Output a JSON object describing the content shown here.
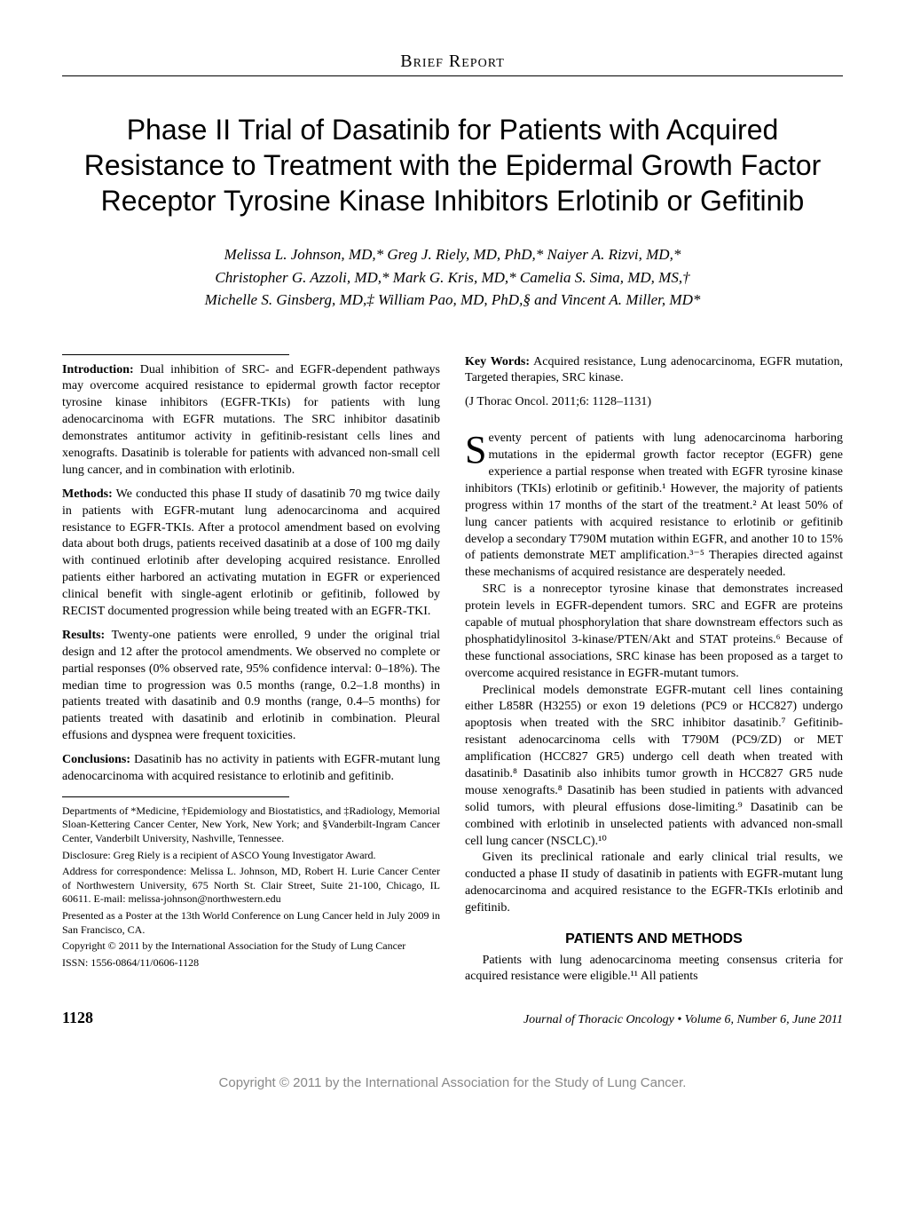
{
  "section_header": "Brief Report",
  "title": "Phase II Trial of Dasatinib for Patients with Acquired Resistance to Treatment with the Epidermal Growth Factor Receptor Tyrosine Kinase Inhibitors Erlotinib or Gefitinib",
  "authors_line1": "Melissa L. Johnson, MD,* Greg J. Riely, MD, PhD,* Naiyer A. Rizvi, MD,*",
  "authors_line2": "Christopher G. Azzoli, MD,* Mark G. Kris, MD,* Camelia S. Sima, MD, MS,†",
  "authors_line3": "Michelle S. Ginsberg, MD,‡ William Pao, MD, PhD,§ and Vincent A. Miller, MD*",
  "abstract": {
    "intro_label": "Introduction:",
    "intro": " Dual inhibition of SRC- and EGFR-dependent pathways may overcome acquired resistance to epidermal growth factor receptor tyrosine kinase inhibitors (EGFR-TKIs) for patients with lung adenocarcinoma with EGFR mutations. The SRC inhibitor dasatinib demonstrates antitumor activity in gefitinib-resistant cells lines and xenografts. Dasatinib is tolerable for patients with advanced non-small cell lung cancer, and in combination with erlotinib.",
    "methods_label": "Methods:",
    "methods": " We conducted this phase II study of dasatinib 70 mg twice daily in patients with EGFR-mutant lung adenocarcinoma and acquired resistance to EGFR-TKIs. After a protocol amendment based on evolving data about both drugs, patients received dasatinib at a dose of 100 mg daily with continued erlotinib after developing acquired resistance. Enrolled patients either harbored an activating mutation in EGFR or experienced clinical benefit with single-agent erlotinib or gefitinib, followed by RECIST documented progression while being treated with an EGFR-TKI.",
    "results_label": "Results:",
    "results": " Twenty-one patients were enrolled, 9 under the original trial design and 12 after the protocol amendments. We observed no complete or partial responses (0% observed rate, 95% confidence interval: 0–18%). The median time to progression was 0.5 months (range, 0.2–1.8 months) in patients treated with dasatinib and 0.9 months (range, 0.4–5 months) for patients treated with dasatinib and erlotinib in combination. Pleural effusions and dyspnea were frequent toxicities.",
    "conclusions_label": "Conclusions:",
    "conclusions": " Dasatinib has no activity in patients with EGFR-mutant lung adenocarcinoma with acquired resistance to erlotinib and gefitinib."
  },
  "affiliations": {
    "depts": "Departments of *Medicine, †Epidemiology and Biostatistics, and ‡Radiology, Memorial Sloan-Kettering Cancer Center, New York, New York; and §Vanderbilt-Ingram Cancer Center, Vanderbilt University, Nashville, Tennessee.",
    "disclosure": "Disclosure: Greg Riely is a recipient of ASCO Young Investigator Award.",
    "correspondence": "Address for correspondence: Melissa L. Johnson, MD, Robert H. Lurie Cancer Center of Northwestern University, 675 North St. Clair Street, Suite 21-100, Chicago, IL 60611. E-mail: melissa-johnson@northwestern.edu",
    "presented": "Presented as a Poster at the 13th World Conference on Lung Cancer held in July 2009 in San Francisco, CA.",
    "copyright": "Copyright © 2011 by the International Association for the Study of Lung Cancer",
    "issn": "ISSN: 1556-0864/11/0606-1128"
  },
  "keywords_label": "Key Words:",
  "keywords": " Acquired resistance, Lung adenocarcinoma, EGFR mutation, Targeted therapies, SRC kinase.",
  "citation": "(J Thorac Oncol. 2011;6: 1128–1131)",
  "body": {
    "p1_dropcap": "S",
    "p1": "eventy percent of patients with lung adenocarcinoma harboring mutations in the epidermal growth factor receptor (EGFR) gene experience a partial response when treated with EGFR tyrosine kinase inhibitors (TKIs) erlotinib or gefitinib.¹ However, the majority of patients progress within 17 months of the start of the treatment.² At least 50% of lung cancer patients with acquired resistance to erlotinib or gefitinib develop a secondary T790M mutation within EGFR, and another 10 to 15% of patients demonstrate MET amplification.³⁻⁵ Therapies directed against these mechanisms of acquired resistance are desperately needed.",
    "p2": "SRC is a nonreceptor tyrosine kinase that demonstrates increased protein levels in EGFR-dependent tumors. SRC and EGFR are proteins capable of mutual phosphorylation that share downstream effectors such as phosphatidylinositol 3-kinase/PTEN/Akt and STAT proteins.⁶ Because of these functional associations, SRC kinase has been proposed as a target to overcome acquired resistance in EGFR-mutant tumors.",
    "p3": "Preclinical models demonstrate EGFR-mutant cell lines containing either L858R (H3255) or exon 19 deletions (PC9 or HCC827) undergo apoptosis when treated with the SRC inhibitor dasatinib.⁷ Gefitinib-resistant adenocarcinoma cells with T790M (PC9/ZD) or MET amplification (HCC827 GR5) undergo cell death when treated with dasatinib.⁸ Dasatinib also inhibits tumor growth in HCC827 GR5 nude mouse xenografts.⁸ Dasatinib has been studied in patients with advanced solid tumors, with pleural effusions dose-limiting.⁹ Dasatinib can be combined with erlotinib in unselected patients with advanced non-small cell lung cancer (NSCLC).¹⁰",
    "p4": "Given its preclinical rationale and early clinical trial results, we conducted a phase II study of dasatinib in patients with EGFR-mutant lung adenocarcinoma and acquired resistance to the EGFR-TKIs erlotinib and gefitinib.",
    "heading": "PATIENTS AND METHODS",
    "p5": "Patients with lung adenocarcinoma meeting consensus criteria for acquired resistance were eligible.¹¹ All patients"
  },
  "footer": {
    "page_number": "1128",
    "journal": "Journal of Thoracic Oncology • Volume 6, Number 6, June 2011"
  },
  "bottom_copyright": "Copyright © 2011 by the International Association for the Study of Lung Cancer."
}
